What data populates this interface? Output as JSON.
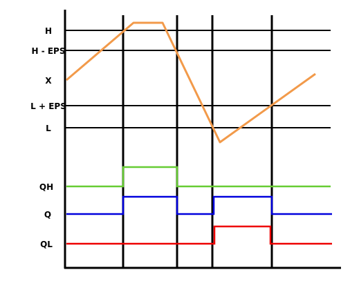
{
  "levels": [
    {
      "key": "H",
      "label": "H"
    },
    {
      "key": "H_EPS",
      "label": "H - EPS"
    },
    {
      "key": "X",
      "label": "X"
    },
    {
      "key": "L_EPS",
      "label": "L + EPS"
    },
    {
      "key": "L",
      "label": "L"
    }
  ],
  "signals": [
    {
      "key": "QH",
      "label": "QH",
      "color": "#66cc33"
    },
    {
      "key": "Q",
      "label": "Q",
      "color": "#0000dd"
    },
    {
      "key": "QL",
      "label": "QL",
      "color": "#ee0000"
    }
  ],
  "analog_color": "#f29a4a"
}
